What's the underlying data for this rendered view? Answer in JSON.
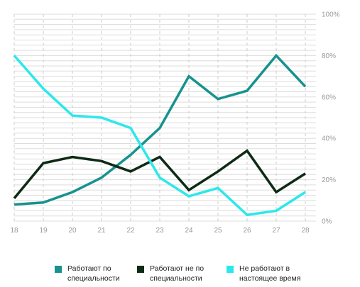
{
  "chart_data": {
    "type": "line",
    "title": "",
    "xlabel": "",
    "ylabel": "",
    "x": [
      18,
      19,
      20,
      21,
      22,
      23,
      24,
      25,
      26,
      27,
      28
    ],
    "xlim": [
      18,
      28
    ],
    "ylim": [
      0,
      100
    ],
    "y_ticks": [
      "0%",
      "20%",
      "40%",
      "60%",
      "80%",
      "100%"
    ],
    "y_tick_values": [
      0,
      20,
      40,
      60,
      80,
      100
    ],
    "grid": true,
    "legend_position": "bottom",
    "series": [
      {
        "name": "Работают по специальности",
        "color": "#17928e",
        "values": [
          8,
          9,
          14,
          21,
          32,
          45,
          70,
          59,
          63,
          80,
          65
        ]
      },
      {
        "name": "Работают не по специальности",
        "color": "#0f2a14",
        "values": [
          11,
          28,
          31,
          29,
          24,
          31,
          15,
          24,
          34,
          14,
          23
        ]
      },
      {
        "name": "Не работают в настоящее время",
        "color": "#2ce8ec",
        "values": [
          80,
          64,
          51,
          50,
          45,
          21,
          12,
          16,
          3,
          5,
          14
        ]
      }
    ]
  }
}
